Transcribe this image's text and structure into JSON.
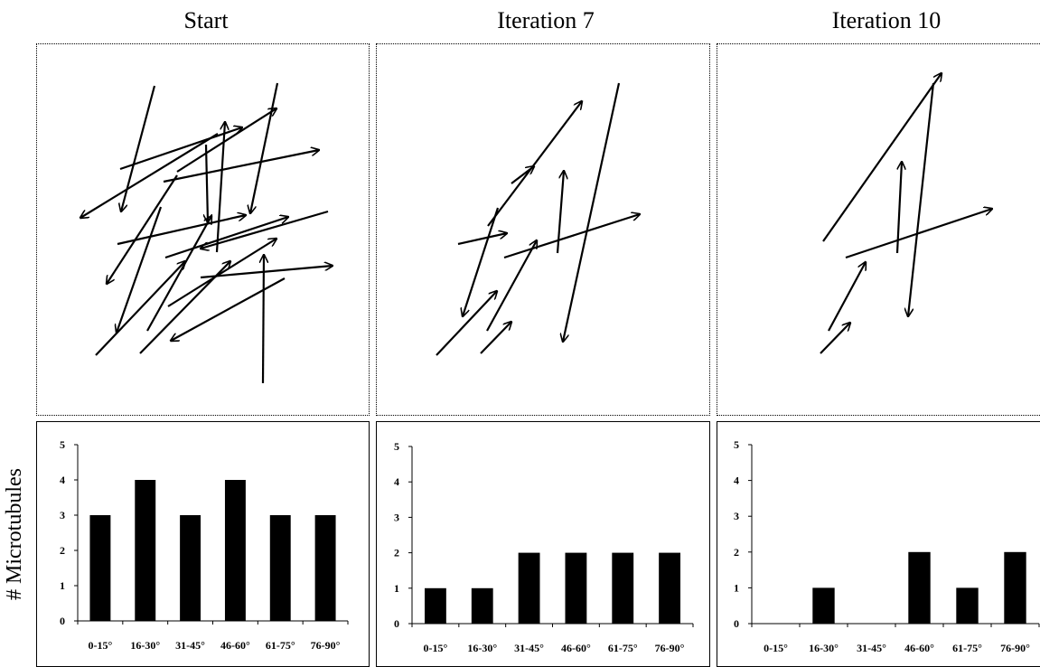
{
  "titles": [
    "Start",
    "Iteration 7",
    "Iteration 10"
  ],
  "ylabel": "# Microtubules",
  "colors": {
    "ink": "#000000",
    "bar": "#000000"
  },
  "chart_data": [
    {
      "type": "bar",
      "title": "Start",
      "categories": [
        "0-15°",
        "16-30°",
        "31-45°",
        "46-60°",
        "61-75°",
        "76-90°"
      ],
      "values": [
        3,
        4,
        3,
        4,
        3,
        3
      ],
      "ylabel": "# Microtubules",
      "ylim": [
        0,
        5
      ],
      "yticks": [
        0,
        1,
        2,
        3,
        4,
        5
      ],
      "grid": false
    },
    {
      "type": "bar",
      "title": "Iteration 7",
      "categories": [
        "0-15°",
        "16-30°",
        "31-45°",
        "46-60°",
        "61-75°",
        "76-90°"
      ],
      "values": [
        1,
        1,
        2,
        2,
        2,
        2
      ],
      "ylim": [
        0,
        5
      ],
      "yticks": [
        0,
        1,
        2,
        3,
        4,
        5
      ],
      "grid": false
    },
    {
      "type": "bar",
      "title": "Iteration 10",
      "categories": [
        "0-15°",
        "16-30°",
        "31-45°",
        "46-60°",
        "61-75°",
        "76-90°"
      ],
      "values": [
        0,
        1,
        0,
        2,
        1,
        2
      ],
      "ylim": [
        0,
        5
      ],
      "yticks": [
        0,
        1,
        2,
        3,
        4,
        5
      ],
      "grid": false
    }
  ]
}
